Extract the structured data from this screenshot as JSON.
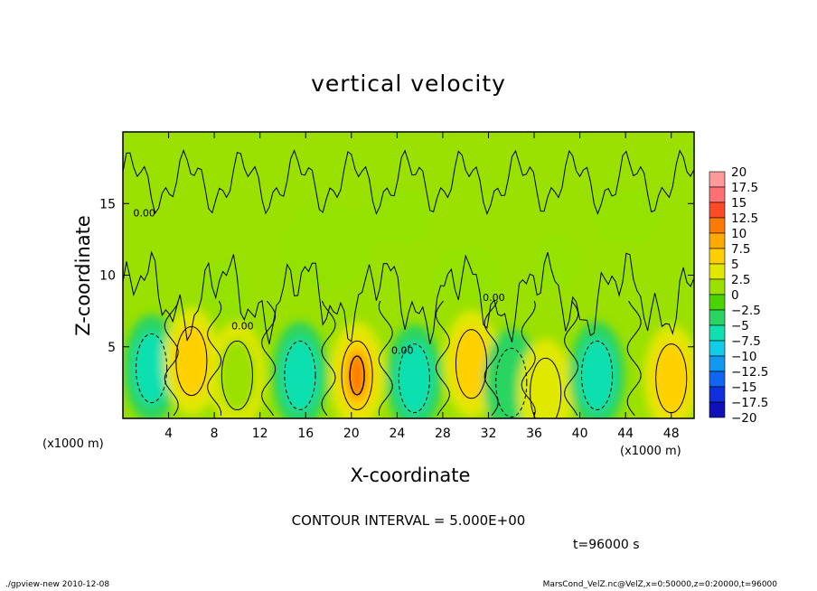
{
  "chart_data": {
    "type": "heatmap",
    "title": "vertical velocity",
    "xlabel": "X-coordinate",
    "ylabel": "Z-coordinate",
    "x_unit": "(x1000 m)",
    "x_ticks": [
      4,
      8,
      12,
      16,
      20,
      24,
      28,
      32,
      36,
      40,
      44,
      48
    ],
    "y_ticks": [
      5,
      10,
      15
    ],
    "xlim": [
      0,
      50
    ],
    "ylim": [
      0,
      20
    ],
    "colorbar_levels": [
      "20",
      "17.5",
      "15",
      "12.5",
      "10",
      "7.5",
      "5",
      "2.5",
      "0",
      "-2.5",
      "-5",
      "-7.5",
      "-10",
      "-12.5",
      "-15",
      "-17.5",
      "-20"
    ],
    "colorbar_colors": [
      "#ff9a9a",
      "#ff7070",
      "#ff4a2a",
      "#ff7a00",
      "#ffaa00",
      "#ffd000",
      "#e0e800",
      "#9ae000",
      "#4cd400",
      "#2ad460",
      "#10e0b0",
      "#12cce8",
      "#1099f0",
      "#1066f0",
      "#1030e0",
      "#1010b8",
      "#5010b8"
    ],
    "contour_labels": [
      "0.00",
      "0.00",
      "0.00",
      "0.00"
    ],
    "features": [
      {
        "x": 2.5,
        "z": 3.5,
        "w": -6
      },
      {
        "x": 6.0,
        "z": 4.0,
        "w": 7
      },
      {
        "x": 10.0,
        "z": 3.0,
        "w": 2
      },
      {
        "x": 15.5,
        "z": 3.0,
        "w": -6
      },
      {
        "x": 20.5,
        "z": 3.0,
        "w": 11
      },
      {
        "x": 25.5,
        "z": 2.8,
        "w": -7
      },
      {
        "x": 30.5,
        "z": 3.8,
        "w": 7
      },
      {
        "x": 34.0,
        "z": 2.5,
        "w": -3
      },
      {
        "x": 37.0,
        "z": 1.8,
        "w": 4
      },
      {
        "x": 41.5,
        "z": 3.0,
        "w": -6
      },
      {
        "x": 48.0,
        "z": 2.8,
        "w": 6
      }
    ]
  },
  "contour_interval_text": "CONTOUR INTERVAL = 5.000E+00",
  "time_text": "t=96000 s",
  "footer_left": "./gpview-new   2010-12-08",
  "footer_right": "MarsCond_VelZ.nc@VelZ,x=0:50000,z=0:20000,t=96000"
}
